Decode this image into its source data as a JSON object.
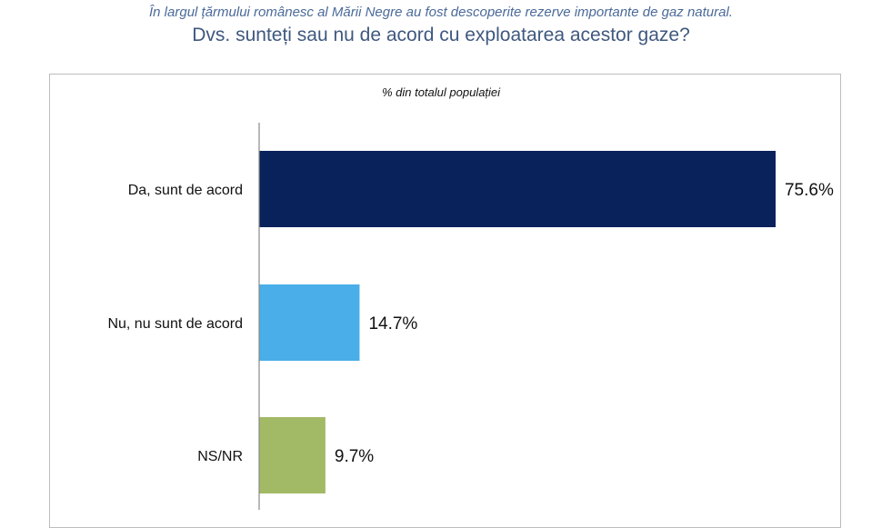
{
  "chart_data": {
    "type": "bar",
    "orientation": "horizontal",
    "subtitle": "În largul țărmului românesc al Mării Negre au fost descoperite rezerve importante de gaz natural.",
    "title": "Dvs. sunteți sau nu de acord cu exploatarea acestor gaze?",
    "unit_label": "% din totalul populației",
    "categories": [
      "Da, sunt de acord",
      "Nu, nu sunt de acord",
      "NS/NR"
    ],
    "values": [
      75.6,
      14.7,
      9.7
    ],
    "value_labels": [
      "75.6%",
      "14.7%",
      "9.7%"
    ],
    "colors": [
      "#0a225c",
      "#4aaee8",
      "#a2ba66"
    ],
    "xlim": [
      0,
      100
    ],
    "grid": false
  }
}
